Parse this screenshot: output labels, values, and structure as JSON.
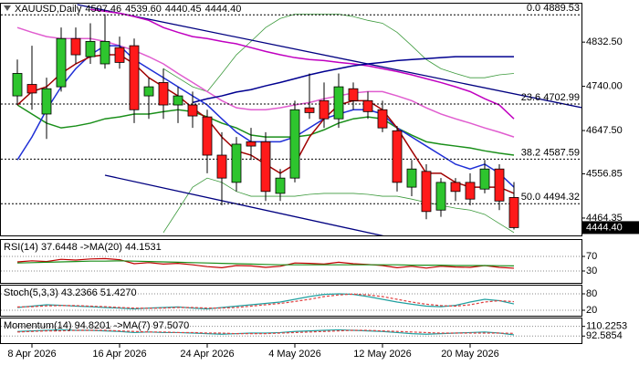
{
  "chart_data": [
    {
      "type": "candlestick",
      "title": "XAUUSD,Daily",
      "header_values": [
        "4507.46",
        "4539.60",
        "4440.45",
        "4444.40"
      ],
      "categories": [
        null,
        "8 Apr 2026",
        null,
        null,
        null,
        null,
        null,
        "16 Apr 2026",
        null,
        null,
        null,
        null,
        null,
        "24 Apr 2026",
        null,
        null,
        null,
        null,
        null,
        "4 May 2026",
        null,
        null,
        null,
        null,
        null,
        "12 May 2026",
        null,
        null,
        null,
        null,
        null,
        "20 May 2026",
        null,
        null,
        null
      ],
      "open": [
        4720,
        4744,
        4682,
        4739,
        4840,
        4802,
        4787,
        4821,
        4825,
        4720,
        4748,
        4701,
        4701,
        4676,
        4596,
        4539,
        4624,
        4624,
        4516,
        4548,
        4695,
        4710,
        4672,
        4735,
        4710,
        4691,
        4647,
        4529,
        4562,
        4481,
        4539,
        4539,
        4525,
        4567,
        4507.46
      ],
      "high": [
        4796,
        4825,
        4758,
        4863,
        4863,
        4872,
        4891,
        4844,
        4840,
        4758,
        4777,
        4739,
        4729,
        4691,
        4644,
        4634,
        4653,
        4644,
        4567,
        4710,
        4767,
        4748,
        4767,
        4748,
        4729,
        4710,
        4657,
        4586,
        4577,
        4548,
        4548,
        4558,
        4586,
        4577,
        4539.6
      ],
      "low": [
        4701,
        4691,
        4630,
        4729,
        4787,
        4787,
        4777,
        4777,
        4663,
        4672,
        4672,
        4663,
        4653,
        4558,
        4491,
        4520,
        4586,
        4500,
        4500,
        4539,
        4672,
        4653,
        4653,
        4691,
        4672,
        4644,
        4520,
        4510,
        4462,
        4467,
        4500,
        4491,
        4516,
        4481,
        4440.45
      ],
      "close": [
        4767,
        4726,
        4735,
        4840,
        4806,
        4834,
        4834,
        4790,
        4691,
        4739,
        4701,
        4720,
        4678,
        4596,
        4548,
        4619,
        4615,
        4520,
        4548,
        4691,
        4685,
        4672,
        4739,
        4710,
        4687,
        4653,
        4539,
        4567,
        4478,
        4539,
        4520,
        4504,
        4567,
        4500,
        4444.4
      ],
      "up_color": "#2ec52e",
      "down_color": "#ff1a1a",
      "bands": [
        {
          "color": "#3c9a3c",
          "values": [
            null,
            null,
            null,
            null,
            null,
            null,
            null,
            null,
            null,
            null,
            4777,
            4758,
            4739,
            4729,
            4767,
            4806,
            4834,
            4863,
            4882,
            4891,
            4891,
            4891,
            4891,
            4886,
            4878,
            4872,
            4853,
            4825,
            4796,
            4777,
            4767,
            4758,
            4758,
            4764,
            4767
          ]
        },
        {
          "color": "#3c9a3c",
          "values": [
            null,
            null,
            null,
            null,
            null,
            null,
            null,
            null,
            null,
            null,
            4434,
            4481,
            4529,
            4548,
            4539,
            4520,
            4510,
            4510,
            4510,
            4510,
            4514,
            4516,
            4516,
            4516,
            4514,
            4510,
            4510,
            4504,
            4497,
            4491,
            4485,
            4481,
            4472,
            4453,
            4434
          ]
        }
      ],
      "overlays": [
        {
          "color": "#e05ccf",
          "values": [
            4863,
            4853,
            4844,
            4840,
            4840,
            4840,
            4834,
            4825,
            4815,
            4802,
            4787,
            4767,
            4748,
            4729,
            4710,
            4695,
            4691,
            4691,
            4695,
            4701,
            4706,
            4714,
            4720,
            4726,
            4729,
            4729,
            4720,
            4710,
            4695,
            4682,
            4672,
            4663,
            4653,
            4644,
            4634
          ]
        },
        {
          "color": "#c000c0",
          "values": [
            null,
            null,
            null,
            null,
            null,
            4901,
            4897,
            4893,
            4886,
            4878,
            4863,
            4853,
            4844,
            4840,
            4834,
            4829,
            4821,
            4813,
            4806,
            4800,
            4796,
            4794,
            4790,
            4787,
            4783,
            4777,
            4771,
            4764,
            4756,
            4748,
            4739,
            4729,
            4714,
            4701,
            4672
          ]
        },
        {
          "color": "#000090",
          "values": [
            null,
            null,
            null,
            null,
            null,
            null,
            null,
            null,
            null,
            null,
            null,
            null,
            4706,
            4714,
            4720,
            4728,
            4733,
            4741,
            4748,
            4756,
            4764,
            4771,
            4777,
            4783,
            4787,
            4790,
            4794,
            4796,
            4798,
            4800,
            4802,
            4802,
            4802,
            4802,
            4802
          ]
        },
        {
          "color": "#1a8f1a",
          "values": [
            4701,
            4682,
            4663,
            4653,
            4657,
            4663,
            4672,
            4676,
            4682,
            4682,
            4687,
            4691,
            4687,
            4676,
            4663,
            4653,
            4638,
            4634,
            4634,
            4634,
            4638,
            4649,
            4663,
            4672,
            4676,
            4672,
            4653,
            4638,
            4624,
            4619,
            4615,
            4611,
            4605,
            4600,
            4596
          ]
        },
        {
          "color": "#1f2fd6",
          "values": [
            4586,
            4634,
            4691,
            4739,
            4777,
            4806,
            4825,
            4825,
            4796,
            4777,
            4758,
            4739,
            4720,
            4701,
            4672,
            4644,
            4624,
            4624,
            4624,
            4634,
            4653,
            4672,
            4682,
            4691,
            4691,
            4682,
            4653,
            4634,
            4615,
            4596,
            4577,
            4567,
            4577,
            4558,
            4529
          ]
        },
        {
          "color": "#a00000",
          "values": [
            4701,
            4729,
            4739,
            4767,
            4787,
            4802,
            4806,
            4806,
            4787,
            4758,
            4739,
            4720,
            4695,
            4672,
            4634,
            4605,
            4596,
            4577,
            4558,
            4577,
            4634,
            4672,
            4701,
            4710,
            4710,
            4691,
            4653,
            4605,
            4558,
            4558,
            4539,
            4529,
            4529,
            4529,
            4516
          ]
        }
      ],
      "trendlines": [
        {
          "color": "#000080",
          "points": [
            [
              4.1,
              4911
            ],
            [
              42.4,
              4672
            ]
          ]
        },
        {
          "color": "#000080",
          "points": [
            [
              6,
              4554
            ],
            [
              26.1,
              4420
            ]
          ]
        }
      ],
      "levels": [
        {
          "value": 4889.53,
          "label": "0.0 4889.53"
        },
        {
          "value": 4702.99,
          "label": "23.6 4702.99"
        },
        {
          "value": 4587.59,
          "label": "38.2 4587.59"
        },
        {
          "value": 4494.32,
          "label": "50.0 4494.32"
        }
      ],
      "last_price_label": "4444.40",
      "ylim": [
        4428,
        4913
      ],
      "yticks": [
        {
          "value": 4832.5,
          "label": "4832.50"
        },
        {
          "value": 4740,
          "label": "4740.00"
        },
        {
          "value": 4647.5,
          "label": "4647.50"
        },
        4556.85,
        4464.35
      ]
    },
    {
      "type": "line",
      "label": "RSI(14) 37.6448 ->MA(20) 44.1531",
      "series": [
        {
          "color": "#c00000",
          "values": [
            55,
            58,
            56,
            62,
            60,
            63,
            64,
            61,
            50,
            53,
            49,
            51,
            47,
            42,
            39,
            45,
            44,
            40,
            43,
            52,
            51,
            49,
            54,
            50,
            48,
            45,
            39,
            43,
            38,
            43,
            41,
            40,
            45,
            40,
            37.6448
          ]
        },
        {
          "color": "#1a8f1a",
          "values": [
            52,
            53,
            54,
            55,
            56,
            57,
            57,
            58,
            57,
            56,
            55,
            54,
            53,
            52,
            51,
            50,
            49,
            48,
            47,
            47,
            47,
            47,
            47,
            47,
            47,
            47,
            47,
            46,
            46,
            46,
            45,
            45,
            45,
            44.5,
            44.1531
          ]
        }
      ],
      "ylim": [
        -2.5,
        115
      ],
      "yticks": [
        70,
        30
      ],
      "grid": true
    },
    {
      "type": "line",
      "label": "Stoch(5,3,3) 43.2366 51.4270",
      "series": [
        {
          "color": "#20a0a0",
          "values": [
            30,
            35,
            40,
            38,
            35,
            33,
            30,
            28,
            25,
            28,
            30,
            32,
            28,
            25,
            30,
            35,
            40,
            45,
            50,
            60,
            70,
            78,
            80,
            78,
            70,
            60,
            50,
            42,
            35,
            33,
            38,
            50,
            60,
            55,
            43.2366
          ]
        },
        {
          "color": "#e04040",
          "dashed": true,
          "values": [
            32,
            33,
            36,
            37,
            37,
            35,
            33,
            30,
            28,
            27,
            28,
            30,
            30,
            28,
            28,
            30,
            35,
            40,
            45,
            52,
            60,
            70,
            76,
            79,
            76,
            70,
            60,
            50,
            42,
            37,
            35,
            40,
            50,
            55,
            51.427
          ]
        }
      ],
      "ylim": [
        0,
        110
      ],
      "yticks": [
        80,
        20
      ],
      "grid": true
    },
    {
      "type": "line",
      "label": "Momentum(14) 94.8201 ->MA(7) 97.5070",
      "series": [
        {
          "color": "#20a0a0",
          "values": [
            101,
            102,
            103,
            104,
            103,
            103,
            102,
            101,
            99,
            100,
            99,
            99,
            98,
            97,
            96,
            97,
            98,
            98,
            99,
            101,
            102,
            103,
            104,
            103,
            102,
            101,
            99,
            97,
            96,
            97,
            98,
            99,
            100,
            98,
            94.8201
          ]
        },
        {
          "color": "#e04040",
          "dashed": true,
          "values": [
            100,
            101,
            102,
            102,
            103,
            103,
            103,
            102,
            101,
            100,
            100,
            99,
            99,
            98,
            98,
            97,
            97,
            97,
            98,
            99,
            100,
            101,
            102,
            103,
            103,
            102,
            101,
            100,
            99,
            98,
            98,
            98,
            98,
            98,
            97.507
          ]
        }
      ],
      "ylim": [
        79.75,
        124.66
      ],
      "yticks": [
        110.2253,
        92.5854
      ],
      "grid": true
    }
  ]
}
